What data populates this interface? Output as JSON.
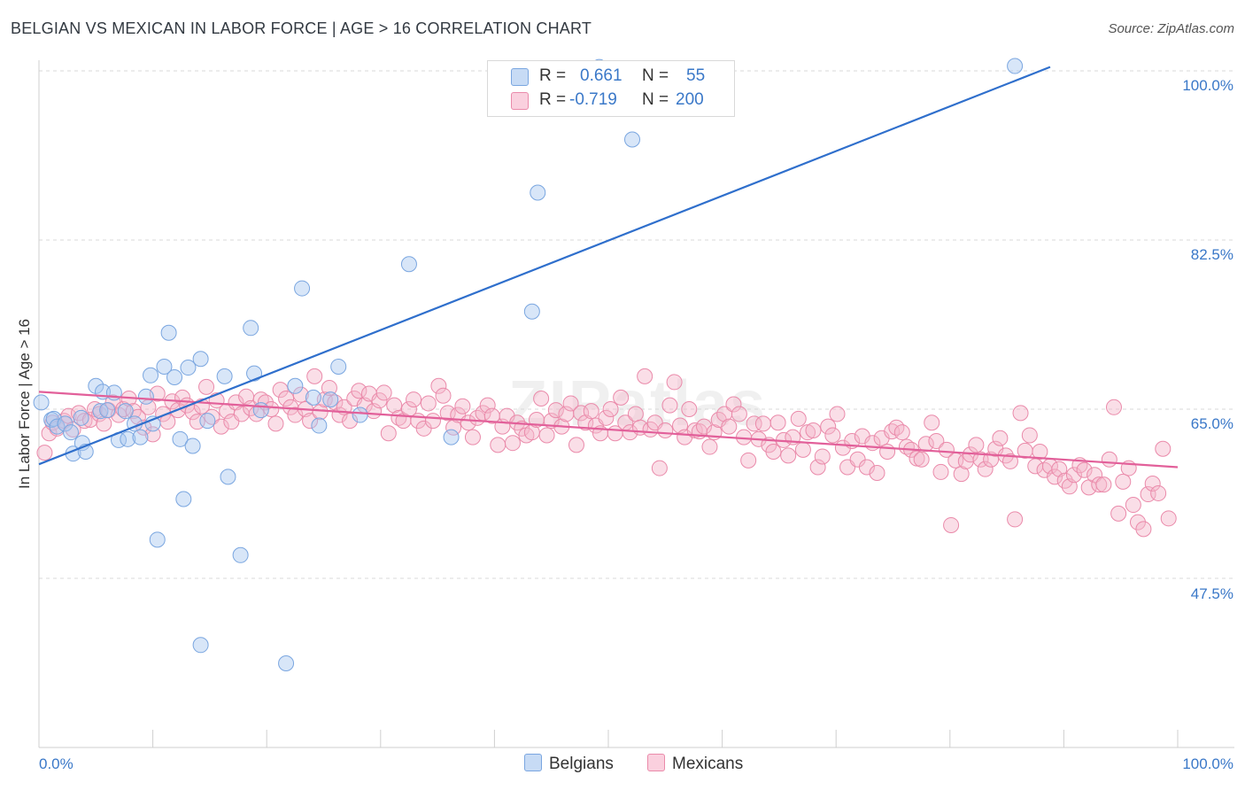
{
  "title": "BELGIAN VS MEXICAN IN LABOR FORCE | AGE > 16 CORRELATION CHART",
  "source": "Source: ZipAtlas.com",
  "watermark": "ZIPatlas",
  "legend": {
    "rows": [
      {
        "r_label": "R =",
        "r_value": "0.661",
        "n_label": "N =",
        "n_value": "55",
        "color": "#a9c7ef"
      },
      {
        "r_label": "R =",
        "r_value": "-0.719",
        "n_label": "N =",
        "n_value": "200",
        "color": "#f5b6c9"
      }
    ]
  },
  "bottom_legend": [
    {
      "label": "Belgians",
      "color": "#a9c7ef"
    },
    {
      "label": "Mexicans",
      "color": "#f5b6c9"
    }
  ],
  "colors": {
    "belgian_fill": "#a9c7ef",
    "belgian_stroke": "#7aa6e0",
    "belgian_line": "#2f6fcc",
    "mexican_fill": "#f5b6c9",
    "mexican_stroke": "#ea8aaa",
    "mexican_line": "#e2609a",
    "accent": "#3a78c8"
  },
  "chart_data": {
    "type": "scatter",
    "title": "BELGIAN VS MEXICAN IN LABOR FORCE | AGE > 16 CORRELATION CHART",
    "xlabel": "",
    "ylabel": "In Labor Force | Age > 16",
    "xlim": [
      0,
      100
    ],
    "ylim": [
      29,
      100.5
    ],
    "y_ticks": [
      100.0,
      82.5,
      65.0,
      47.5
    ],
    "y_tick_labels": [
      "100.0%",
      "82.5%",
      "65.0%",
      "47.5%"
    ],
    "x_tick_labels": [
      "0.0%",
      "100.0%"
    ],
    "grid": true,
    "legend_position": "top-center",
    "series": [
      {
        "name": "Belgians",
        "R": 0.661,
        "N": 55,
        "trend": {
          "x0": 0,
          "y0": 59.3,
          "x1": 88.8,
          "y1": 100.4
        },
        "points": [
          [
            0.2,
            65.7
          ],
          [
            1.1,
            63.9
          ],
          [
            1.3,
            64.0
          ],
          [
            1.6,
            63.2
          ],
          [
            2.3,
            63.5
          ],
          [
            2.8,
            62.6
          ],
          [
            3.0,
            60.4
          ],
          [
            3.7,
            64.1
          ],
          [
            3.8,
            61.5
          ],
          [
            4.1,
            60.6
          ],
          [
            5.0,
            67.4
          ],
          [
            5.4,
            64.8
          ],
          [
            5.6,
            66.8
          ],
          [
            6.0,
            64.9
          ],
          [
            6.6,
            66.7
          ],
          [
            7.0,
            61.8
          ],
          [
            7.6,
            64.8
          ],
          [
            7.8,
            61.9
          ],
          [
            8.4,
            63.5
          ],
          [
            8.9,
            62.1
          ],
          [
            9.4,
            66.3
          ],
          [
            9.8,
            68.5
          ],
          [
            10.0,
            63.5
          ],
          [
            10.4,
            51.5
          ],
          [
            11.0,
            69.4
          ],
          [
            11.4,
            72.9
          ],
          [
            11.9,
            68.3
          ],
          [
            12.4,
            61.9
          ],
          [
            12.7,
            55.7
          ],
          [
            13.1,
            69.3
          ],
          [
            13.5,
            61.2
          ],
          [
            14.2,
            70.2
          ],
          [
            14.2,
            40.6
          ],
          [
            14.8,
            63.8
          ],
          [
            16.3,
            68.4
          ],
          [
            16.6,
            58.0
          ],
          [
            17.7,
            49.9
          ],
          [
            18.6,
            73.4
          ],
          [
            18.9,
            68.7
          ],
          [
            19.5,
            64.9
          ],
          [
            21.7,
            38.7
          ],
          [
            22.5,
            67.4
          ],
          [
            23.1,
            77.5
          ],
          [
            24.1,
            66.2
          ],
          [
            24.6,
            63.3
          ],
          [
            25.6,
            66.0
          ],
          [
            26.3,
            69.4
          ],
          [
            28.2,
            64.4
          ],
          [
            32.5,
            80.0
          ],
          [
            36.2,
            62.1
          ],
          [
            43.3,
            75.1
          ],
          [
            43.8,
            87.4
          ],
          [
            49.2,
            100.4
          ],
          [
            52.1,
            92.9
          ],
          [
            85.7,
            100.5
          ]
        ]
      },
      {
        "name": "Mexicans",
        "R": -0.719,
        "N": 200,
        "trend": {
          "x0": 0,
          "y0": 66.8,
          "x1": 100,
          "y1": 59.0
        },
        "points": [
          [
            0.5,
            60.5
          ],
          [
            0.9,
            62.5
          ],
          [
            1.2,
            63.6
          ],
          [
            1.6,
            63.0
          ],
          [
            2.2,
            63.8
          ],
          [
            2.6,
            64.3
          ],
          [
            3.0,
            62.9
          ],
          [
            3.5,
            64.6
          ],
          [
            4.0,
            63.8
          ],
          [
            4.5,
            63.9
          ],
          [
            4.9,
            65.0
          ],
          [
            5.3,
            64.5
          ],
          [
            5.7,
            63.5
          ],
          [
            6.1,
            64.9
          ],
          [
            6.5,
            65.7
          ],
          [
            7.0,
            64.4
          ],
          [
            7.4,
            65.0
          ],
          [
            7.9,
            66.1
          ],
          [
            8.3,
            64.8
          ],
          [
            8.7,
            64.2
          ],
          [
            9.2,
            63.1
          ],
          [
            9.6,
            65.2
          ],
          [
            10.0,
            62.4
          ],
          [
            10.4,
            66.6
          ],
          [
            10.9,
            64.5
          ],
          [
            11.3,
            63.7
          ],
          [
            11.7,
            65.8
          ],
          [
            12.2,
            64.9
          ],
          [
            12.6,
            66.2
          ],
          [
            13.0,
            65.4
          ],
          [
            13.5,
            64.7
          ],
          [
            13.9,
            63.7
          ],
          [
            14.3,
            65.3
          ],
          [
            14.7,
            67.3
          ],
          [
            15.2,
            64.2
          ],
          [
            15.6,
            65.9
          ],
          [
            16.0,
            63.2
          ],
          [
            16.5,
            64.8
          ],
          [
            16.9,
            63.7
          ],
          [
            17.3,
            65.7
          ],
          [
            17.8,
            64.5
          ],
          [
            18.2,
            66.3
          ],
          [
            18.6,
            65.1
          ],
          [
            19.1,
            64.5
          ],
          [
            19.5,
            66.0
          ],
          [
            19.9,
            65.7
          ],
          [
            20.4,
            65.0
          ],
          [
            20.8,
            63.5
          ],
          [
            21.2,
            67.0
          ],
          [
            21.7,
            66.1
          ],
          [
            22.1,
            65.2
          ],
          [
            22.5,
            64.4
          ],
          [
            23.0,
            66.5
          ],
          [
            23.4,
            65.0
          ],
          [
            23.8,
            63.8
          ],
          [
            24.2,
            68.4
          ],
          [
            24.7,
            64.7
          ],
          [
            25.1,
            66.0
          ],
          [
            25.5,
            67.2
          ],
          [
            26.0,
            65.7
          ],
          [
            26.4,
            64.4
          ],
          [
            26.8,
            65.2
          ],
          [
            27.3,
            63.8
          ],
          [
            27.7,
            66.1
          ],
          [
            28.1,
            66.9
          ],
          [
            28.6,
            65.4
          ],
          [
            29.0,
            66.6
          ],
          [
            29.4,
            64.8
          ],
          [
            29.9,
            65.9
          ],
          [
            30.3,
            66.7
          ],
          [
            30.7,
            62.5
          ],
          [
            31.2,
            65.4
          ],
          [
            31.6,
            64.1
          ],
          [
            32.0,
            63.8
          ],
          [
            32.5,
            65.0
          ],
          [
            32.9,
            66.0
          ],
          [
            33.3,
            63.8
          ],
          [
            33.8,
            63.0
          ],
          [
            34.2,
            65.6
          ],
          [
            34.6,
            63.8
          ],
          [
            35.1,
            67.4
          ],
          [
            35.5,
            66.4
          ],
          [
            35.9,
            64.6
          ],
          [
            36.4,
            63.1
          ],
          [
            36.8,
            64.4
          ],
          [
            37.2,
            65.3
          ],
          [
            37.7,
            63.6
          ],
          [
            38.1,
            62.1
          ],
          [
            38.5,
            64.1
          ],
          [
            39.0,
            64.6
          ],
          [
            39.4,
            65.4
          ],
          [
            39.8,
            64.3
          ],
          [
            40.3,
            61.3
          ],
          [
            40.7,
            63.2
          ],
          [
            41.1,
            64.3
          ],
          [
            41.6,
            61.5
          ],
          [
            42.0,
            63.6
          ],
          [
            42.4,
            63.0
          ],
          [
            42.8,
            62.3
          ],
          [
            43.3,
            62.6
          ],
          [
            43.7,
            63.9
          ],
          [
            44.1,
            66.1
          ],
          [
            44.6,
            62.3
          ],
          [
            45.0,
            63.8
          ],
          [
            45.4,
            64.9
          ],
          [
            45.9,
            63.2
          ],
          [
            46.3,
            64.5
          ],
          [
            46.7,
            65.6
          ],
          [
            47.2,
            61.3
          ],
          [
            47.6,
            64.6
          ],
          [
            48.0,
            63.6
          ],
          [
            48.5,
            64.8
          ],
          [
            48.9,
            63.3
          ],
          [
            49.3,
            62.5
          ],
          [
            49.8,
            64.1
          ],
          [
            50.2,
            65.0
          ],
          [
            50.6,
            62.5
          ],
          [
            51.1,
            66.2
          ],
          [
            51.5,
            63.6
          ],
          [
            51.9,
            62.6
          ],
          [
            52.4,
            64.5
          ],
          [
            52.8,
            63.1
          ],
          [
            53.2,
            68.4
          ],
          [
            53.7,
            62.9
          ],
          [
            54.1,
            63.6
          ],
          [
            54.5,
            58.9
          ],
          [
            55.0,
            62.8
          ],
          [
            55.4,
            65.4
          ],
          [
            55.8,
            67.8
          ],
          [
            56.3,
            63.3
          ],
          [
            56.7,
            62.1
          ],
          [
            57.1,
            65.0
          ],
          [
            57.6,
            62.8
          ],
          [
            58.0,
            62.7
          ],
          [
            58.4,
            63.2
          ],
          [
            58.9,
            61.1
          ],
          [
            59.3,
            62.6
          ],
          [
            59.7,
            63.9
          ],
          [
            60.2,
            64.5
          ],
          [
            60.6,
            63.2
          ],
          [
            61.0,
            65.5
          ],
          [
            61.5,
            64.5
          ],
          [
            61.9,
            62.1
          ],
          [
            62.3,
            59.7
          ],
          [
            62.8,
            63.5
          ],
          [
            63.2,
            61.9
          ],
          [
            63.6,
            63.5
          ],
          [
            64.1,
            61.3
          ],
          [
            64.5,
            60.6
          ],
          [
            64.9,
            63.6
          ],
          [
            65.4,
            61.8
          ],
          [
            65.8,
            60.2
          ],
          [
            66.2,
            62.1
          ],
          [
            66.7,
            64.0
          ],
          [
            67.1,
            60.8
          ],
          [
            67.5,
            62.6
          ],
          [
            68.0,
            62.8
          ],
          [
            68.4,
            59.0
          ],
          [
            68.8,
            60.1
          ],
          [
            69.3,
            63.2
          ],
          [
            69.7,
            62.3
          ],
          [
            70.1,
            64.5
          ],
          [
            70.6,
            61.0
          ],
          [
            71.0,
            59.0
          ],
          [
            71.4,
            61.7
          ],
          [
            71.9,
            59.8
          ],
          [
            72.3,
            62.2
          ],
          [
            72.7,
            59.0
          ],
          [
            73.2,
            61.5
          ],
          [
            73.6,
            58.4
          ],
          [
            74.0,
            62.0
          ],
          [
            74.5,
            60.6
          ],
          [
            74.9,
            62.7
          ],
          [
            75.3,
            63.1
          ],
          [
            75.8,
            62.6
          ],
          [
            76.2,
            61.1
          ],
          [
            76.6,
            60.8
          ],
          [
            77.1,
            59.9
          ],
          [
            77.5,
            59.8
          ],
          [
            77.9,
            61.4
          ],
          [
            78.4,
            63.6
          ],
          [
            78.8,
            61.7
          ],
          [
            79.2,
            58.5
          ],
          [
            79.7,
            60.8
          ],
          [
            80.1,
            53.0
          ],
          [
            80.5,
            59.7
          ],
          [
            81.0,
            58.3
          ],
          [
            81.4,
            59.6
          ],
          [
            81.8,
            60.3
          ],
          [
            82.3,
            61.3
          ],
          [
            82.7,
            59.8
          ],
          [
            83.1,
            58.8
          ],
          [
            83.6,
            59.8
          ],
          [
            84.0,
            60.9
          ],
          [
            84.4,
            62.0
          ],
          [
            84.9,
            60.2
          ],
          [
            85.3,
            59.6
          ],
          [
            85.7,
            53.6
          ],
          [
            86.2,
            64.6
          ],
          [
            86.6,
            60.7
          ],
          [
            87.0,
            62.3
          ],
          [
            87.5,
            59.1
          ],
          [
            87.9,
            60.6
          ],
          [
            88.3,
            58.7
          ],
          [
            88.8,
            59.1
          ],
          [
            89.2,
            58.0
          ],
          [
            89.6,
            58.8
          ],
          [
            90.1,
            57.6
          ],
          [
            90.5,
            57.0
          ],
          [
            90.9,
            58.2
          ],
          [
            91.4,
            59.2
          ],
          [
            91.8,
            58.7
          ],
          [
            92.2,
            56.9
          ],
          [
            92.7,
            58.2
          ],
          [
            93.1,
            57.2
          ],
          [
            93.5,
            57.2
          ],
          [
            94.0,
            59.8
          ],
          [
            94.4,
            65.2
          ],
          [
            94.8,
            54.2
          ],
          [
            95.2,
            57.5
          ],
          [
            95.7,
            58.9
          ],
          [
            96.1,
            55.1
          ],
          [
            96.5,
            53.3
          ],
          [
            97.0,
            52.6
          ],
          [
            97.4,
            56.2
          ],
          [
            97.8,
            57.3
          ],
          [
            98.3,
            56.3
          ],
          [
            98.7,
            60.9
          ],
          [
            99.2,
            53.7
          ]
        ]
      }
    ]
  }
}
